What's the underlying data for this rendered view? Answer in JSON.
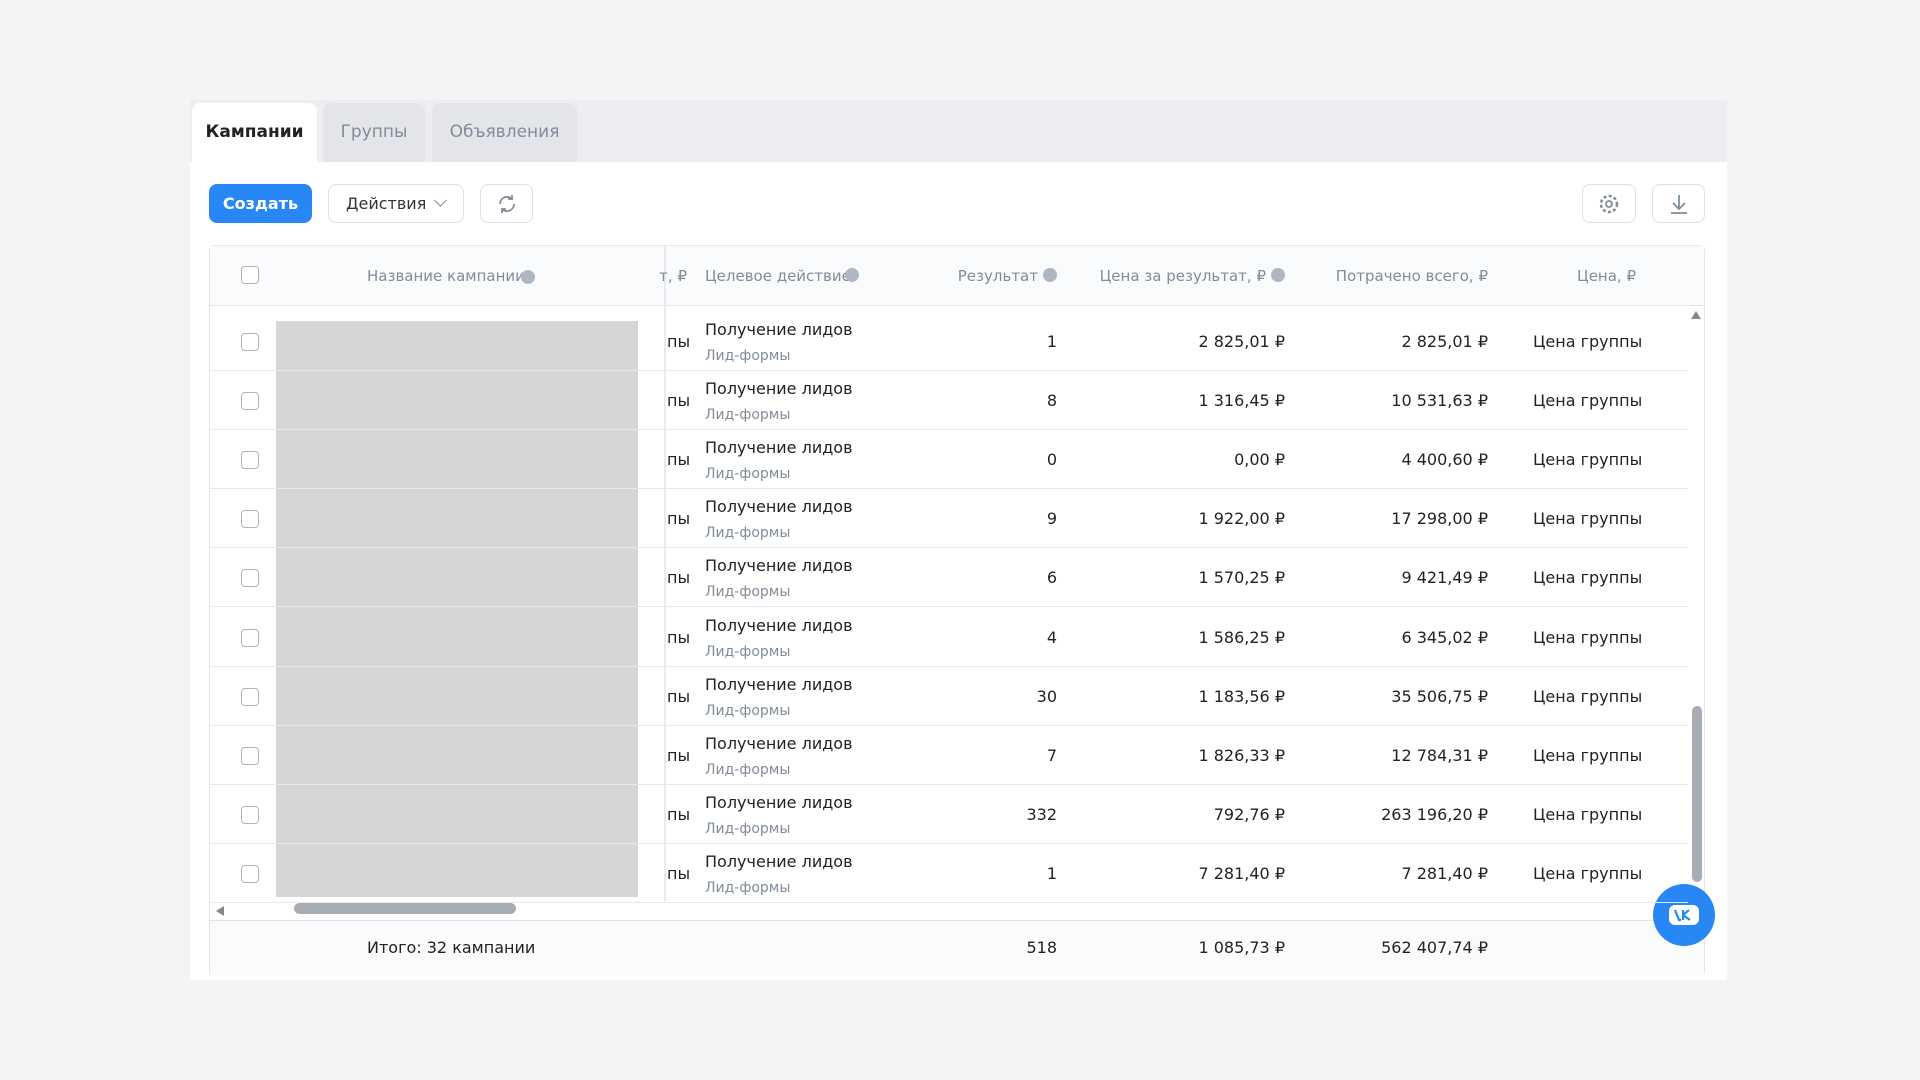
{
  "tabs": [
    "Кампании",
    "Группы",
    "Объявления"
  ],
  "toolbar": {
    "create": "Создать",
    "actions": "Действия"
  },
  "table": {
    "columns": {
      "name": "Название кампании",
      "cut": "т, ₽",
      "goal": "Целевое действие",
      "result": "Результат",
      "cost": "Цена за результат, ₽",
      "spent": "Потрачено всего, ₽",
      "price": "Цена, ₽"
    },
    "rows": [
      {
        "cut": "пы",
        "goal": "Получение лидов",
        "goal_sub": "Лид-формы",
        "result": "1",
        "cost": "2 825,01 ₽",
        "spent": "2 825,01 ₽",
        "price": "Цена группы"
      },
      {
        "cut": "пы",
        "goal": "Получение лидов",
        "goal_sub": "Лид-формы",
        "result": "8",
        "cost": "1 316,45 ₽",
        "spent": "10 531,63 ₽",
        "price": "Цена группы"
      },
      {
        "cut": "пы",
        "goal": "Получение лидов",
        "goal_sub": "Лид-формы",
        "result": "0",
        "cost": "0,00 ₽",
        "spent": "4 400,60 ₽",
        "price": "Цена группы"
      },
      {
        "cut": "пы",
        "goal": "Получение лидов",
        "goal_sub": "Лид-формы",
        "result": "9",
        "cost": "1 922,00 ₽",
        "spent": "17 298,00 ₽",
        "price": "Цена группы"
      },
      {
        "cut": "пы",
        "goal": "Получение лидов",
        "goal_sub": "Лид-формы",
        "result": "6",
        "cost": "1 570,25 ₽",
        "spent": "9 421,49 ₽",
        "price": "Цена группы"
      },
      {
        "cut": "пы",
        "goal": "Получение лидов",
        "goal_sub": "Лид-формы",
        "result": "4",
        "cost": "1 586,25 ₽",
        "spent": "6 345,02 ₽",
        "price": "Цена группы"
      },
      {
        "cut": "пы",
        "goal": "Получение лидов",
        "goal_sub": "Лид-формы",
        "result": "30",
        "cost": "1 183,56 ₽",
        "spent": "35 506,75 ₽",
        "price": "Цена группы"
      },
      {
        "cut": "пы",
        "goal": "Получение лидов",
        "goal_sub": "Лид-формы",
        "result": "7",
        "cost": "1 826,33 ₽",
        "spent": "12 784,31 ₽",
        "price": "Цена группы"
      },
      {
        "cut": "пы",
        "goal": "Получение лидов",
        "goal_sub": "Лид-формы",
        "result": "332",
        "cost": "792,76 ₽",
        "spent": "263 196,20 ₽",
        "price": "Цена группы"
      },
      {
        "cut": "пы",
        "goal": "Получение лидов",
        "goal_sub": "Лид-формы",
        "result": "1",
        "cost": "7 281,40 ₽",
        "spent": "7 281,40 ₽",
        "price": "Цена группы"
      }
    ],
    "total": {
      "label": "Итого: 32 кампании",
      "result": "518",
      "cost": "1 085,73 ₽",
      "spent": "562 407,74 ₽"
    }
  }
}
